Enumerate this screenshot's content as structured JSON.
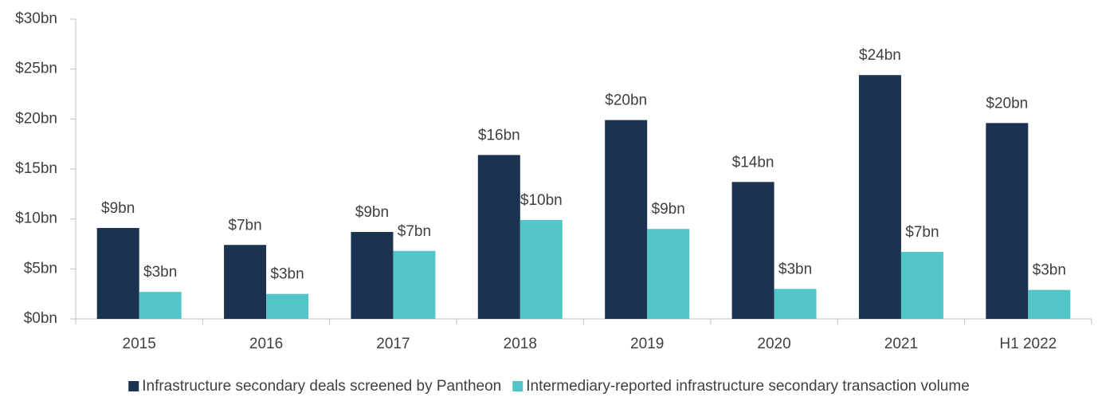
{
  "chart_data": {
    "type": "bar",
    "categories": [
      "2015",
      "2016",
      "2017",
      "2018",
      "2019",
      "2020",
      "2021",
      "H1 2022"
    ],
    "series": [
      {
        "name": "Infrastructure secondary deals screened by Pantheon",
        "color": "#1b3350",
        "values": [
          9.1,
          7.4,
          8.7,
          16.4,
          19.9,
          13.7,
          24.4,
          19.6
        ],
        "value_labels": [
          "$9bn",
          "$7bn",
          "$9bn",
          "$16bn",
          "$20bn",
          "$14bn",
          "$24bn",
          "$20bn"
        ]
      },
      {
        "name": "Intermediary-reported infrastructure secondary transaction volume",
        "color": "#52c5c8",
        "values": [
          2.7,
          2.5,
          6.8,
          9.9,
          9.0,
          3.0,
          6.7,
          2.9
        ],
        "value_labels": [
          "$3bn",
          "$3bn",
          "$7bn",
          "$10bn",
          "$9bn",
          "$3bn",
          "$7bn",
          "$3bn"
        ]
      }
    ],
    "ylim": [
      0,
      30
    ],
    "yticks": [
      {
        "value": 0,
        "label": "$0bn"
      },
      {
        "value": 5,
        "label": "$5bn"
      },
      {
        "value": 10,
        "label": "$10bn"
      },
      {
        "value": 15,
        "label": "$15bn"
      },
      {
        "value": 20,
        "label": "$20bn"
      },
      {
        "value": 25,
        "label": "$25bn"
      },
      {
        "value": 30,
        "label": "$30bn"
      }
    ],
    "legend": "bottom"
  }
}
